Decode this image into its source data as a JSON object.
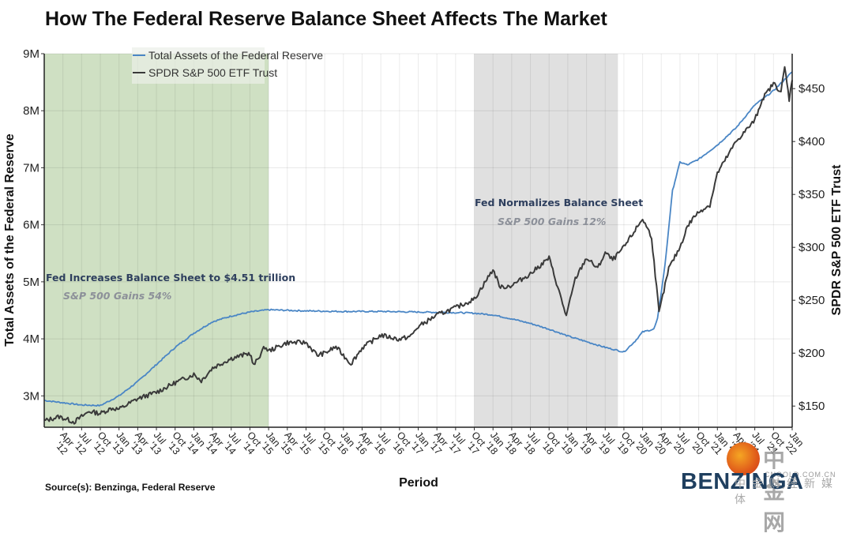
{
  "title": "How The Federal Reserve Balance Sheet Affects The Market",
  "source": "Source(s): Benzinga, Federal Reserve",
  "brand": "BENZINGA",
  "watermark": {
    "name": "中金网",
    "domain": "CNGOLD.COM.CN",
    "subtitle": "中金财经新媒体"
  },
  "colors": {
    "fed": "#4a86c5",
    "spy": "#3a3a3a",
    "green_band": "#cfe0c3",
    "gray_band": "#e0e0e0",
    "annotation_title": "#2e3f5e",
    "annotation_sub": "#8c9099"
  },
  "chart_data": {
    "type": "line",
    "title": "How The Federal Reserve Balance Sheet Affects The Market",
    "xlabel": "Period",
    "ylabel_left": "Total Assets of the Federal Reserve",
    "ylabel_right": "SPDR S&P 500 ETF Trust",
    "x_range": [
      "Jan '12",
      "Jan '22"
    ],
    "x_ticks": [
      "Apr '12",
      "Jul '12",
      "Oct '12",
      "Jan '13",
      "Apr '13",
      "Jul '13",
      "Oct '13",
      "Jan '14",
      "Apr '14",
      "Jul '14",
      "Oct '14",
      "Jan '15",
      "Apr '15",
      "Jul '15",
      "Oct '15",
      "Jan '16",
      "Apr '16",
      "Jul '16",
      "Oct '16",
      "Jan '17",
      "Apr '17",
      "Jul '17",
      "Oct '17",
      "Jan '18",
      "Apr '18",
      "Jul '18",
      "Oct '18",
      "Jan '19",
      "Apr '19",
      "Jul '19",
      "Oct '19",
      "Jan '20",
      "Apr '20",
      "Jul '20",
      "Oct '20",
      "Jan '21",
      "Apr '21",
      "Jul '21",
      "Oct '21",
      "Jan '22"
    ],
    "y_left": {
      "ticks": [
        "3M",
        "4M",
        "5M",
        "6M",
        "7M",
        "8M",
        "9M"
      ],
      "tick_values": [
        3,
        4,
        5,
        6,
        7,
        8,
        9
      ],
      "range": [
        2.45,
        9.0
      ],
      "unit": "millions"
    },
    "y_right": {
      "ticks": [
        "$150",
        "$200",
        "$250",
        "$300",
        "$350",
        "$400",
        "$450"
      ],
      "tick_values": [
        150,
        200,
        250,
        300,
        350,
        400,
        450
      ],
      "range": [
        130,
        483
      ]
    },
    "grid": true,
    "legend": {
      "position": "top-left",
      "entries": [
        "Total Assets of the Federal Reserve",
        "SPDR S&P 500 ETF Trust"
      ]
    },
    "shaded_regions": [
      {
        "from": 2012.0,
        "to": 2015.0,
        "color": "green",
        "label": "Fed Increases Balance Sheet to $4.51 trillion",
        "sublabel": "S&P 500 Gains 54%"
      },
      {
        "from": 2017.75,
        "to": 2019.67,
        "color": "gray",
        "label": "Fed Normalizes Balance Sheet",
        "sublabel": "S&P 500 Gains 12%"
      }
    ],
    "series": [
      {
        "name": "Total Assets of the Federal Reserve",
        "axis": "left",
        "x": [
          2012.0,
          2012.25,
          2012.5,
          2012.75,
          2013.0,
          2013.25,
          2013.5,
          2013.75,
          2014.0,
          2014.25,
          2014.5,
          2014.75,
          2015.0,
          2015.5,
          2016.0,
          2016.5,
          2017.0,
          2017.5,
          2017.75,
          2018.0,
          2018.25,
          2018.5,
          2018.75,
          2019.0,
          2019.25,
          2019.5,
          2019.75,
          2019.9,
          2020.0,
          2020.15,
          2020.2,
          2020.3,
          2020.4,
          2020.5,
          2020.6,
          2020.75,
          2021.0,
          2021.25,
          2021.5,
          2021.75,
          2022.0
        ],
        "values": [
          2.92,
          2.88,
          2.84,
          2.83,
          3.0,
          3.25,
          3.55,
          3.85,
          4.1,
          4.3,
          4.4,
          4.47,
          4.51,
          4.49,
          4.48,
          4.48,
          4.47,
          4.46,
          4.45,
          4.42,
          4.35,
          4.27,
          4.17,
          4.05,
          3.95,
          3.85,
          3.77,
          3.96,
          4.12,
          4.17,
          4.35,
          5.3,
          6.6,
          7.1,
          7.05,
          7.15,
          7.4,
          7.7,
          8.1,
          8.35,
          8.68
        ]
      },
      {
        "name": "SPDR S&P 500 ETF Trust",
        "axis": "right",
        "x": [
          2012.0,
          2012.2,
          2012.4,
          2012.6,
          2012.75,
          2012.9,
          2013.0,
          2013.25,
          2013.5,
          2013.75,
          2014.0,
          2014.1,
          2014.25,
          2014.5,
          2014.75,
          2014.8,
          2014.95,
          2015.0,
          2015.25,
          2015.5,
          2015.65,
          2015.75,
          2015.9,
          2016.1,
          2016.25,
          2016.5,
          2016.75,
          2016.9,
          2017.0,
          2017.25,
          2017.5,
          2017.75,
          2018.0,
          2018.1,
          2018.25,
          2018.5,
          2018.75,
          2018.98,
          2019.1,
          2019.25,
          2019.4,
          2019.5,
          2019.6,
          2019.75,
          2020.0,
          2020.12,
          2020.22,
          2020.35,
          2020.5,
          2020.6,
          2020.7,
          2020.8,
          2020.9,
          2021.0,
          2021.25,
          2021.5,
          2021.6,
          2021.75,
          2021.85,
          2021.9,
          2021.96,
          2022.0
        ],
        "values": [
          136,
          140,
          135,
          145,
          143,
          148,
          147,
          157,
          163,
          172,
          180,
          174,
          186,
          195,
          200,
          188,
          206,
          202,
          210,
          210,
          198,
          200,
          206,
          190,
          205,
          217,
          213,
          216,
          225,
          236,
          243,
          251,
          279,
          262,
          264,
          275,
          290,
          235,
          270,
          290,
          280,
          295,
          288,
          300,
          327,
          310,
          238,
          280,
          300,
          320,
          330,
          336,
          340,
          370,
          400,
          420,
          440,
          455,
          447,
          470,
          440,
          458
        ]
      }
    ]
  }
}
